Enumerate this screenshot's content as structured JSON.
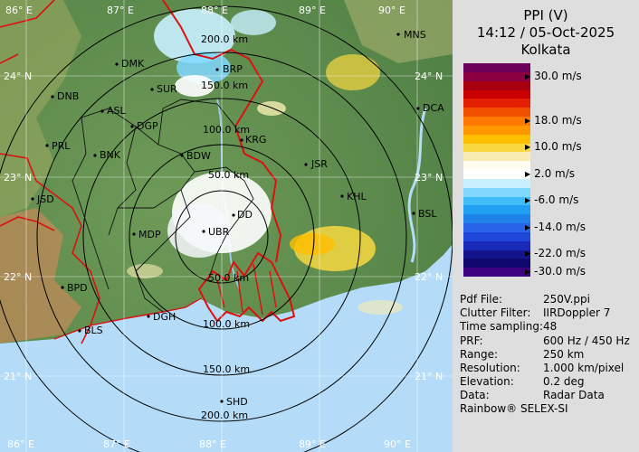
{
  "title": {
    "product": "PPI (V)",
    "datetime": "14:12 / 05-Oct-2025",
    "station": "Kolkata"
  },
  "scale": {
    "colors": [
      "#6a0058",
      "#8a0040",
      "#a80010",
      "#c80000",
      "#e42000",
      "#f05000",
      "#ff7800",
      "#ff9800",
      "#ffbe00",
      "#f8d840",
      "#f8ecb0",
      "#fffcf0",
      "#ffffff",
      "#c8f0ff",
      "#80d8ff",
      "#40bcf8",
      "#20a0f0",
      "#1e82e8",
      "#2864e8",
      "#1e46d8",
      "#1a2ab8",
      "#14148c",
      "#10086c",
      "#3c0080"
    ],
    "ticks": [
      {
        "label": "30.0 m/s",
        "index": 1
      },
      {
        "label": "18.0 m/s",
        "index": 6
      },
      {
        "label": "10.0 m/s",
        "index": 9
      },
      {
        "label": "2.0 m/s",
        "index": 12
      },
      {
        "label": "-6.0 m/s",
        "index": 15
      },
      {
        "label": "-14.0 m/s",
        "index": 18
      },
      {
        "label": "-22.0 m/s",
        "index": 21
      },
      {
        "label": "-30.0 m/s",
        "index": 23
      }
    ]
  },
  "info": [
    {
      "key": "Pdf File:",
      "value": "250V.ppi"
    },
    {
      "key": "Clutter Filter:",
      "value": "IIRDoppler 7"
    },
    {
      "key": "Time sampling:",
      "value": "48"
    },
    {
      "key": "PRF:",
      "value": "600 Hz / 450 Hz"
    },
    {
      "key": "Range:",
      "value": "250 km"
    },
    {
      "key": "Resolution:",
      "value": "1.000 km/pixel"
    },
    {
      "key": "Elevation:",
      "value": "0.2 deg"
    },
    {
      "key": "Data:",
      "value": "Radar Data"
    }
  ],
  "footer": "Rainbow® SELEX-SI",
  "map": {
    "lon_labels": [
      "86° E",
      "87° E",
      "88° E",
      "89° E",
      "90° E"
    ],
    "lat_labels": [
      "24° N",
      "23° N",
      "22° N",
      "21° N"
    ],
    "range_labels": [
      "200.0 km",
      "150.0 km",
      "100.0 km",
      "50.0 km",
      "50.0 km",
      "100.0 km",
      "150.0 km",
      "200.0 km"
    ],
    "cities": [
      "DMK",
      "BRP",
      "SUR",
      "DNB",
      "ASL",
      "DGP",
      "KRG",
      "PRL",
      "BNK",
      "BDW",
      "JSR",
      "JSD",
      "KHL",
      "MDP",
      "DD",
      "UBR",
      "BSL",
      "BPD",
      "DGH",
      "BLS",
      "SHD",
      "MNS",
      "DCA"
    ]
  }
}
